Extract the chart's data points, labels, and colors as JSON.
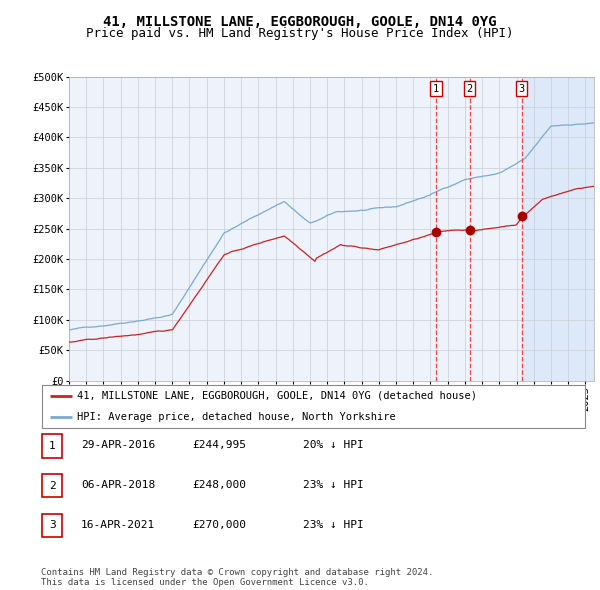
{
  "title": "41, MILLSTONE LANE, EGGBOROUGH, GOOLE, DN14 0YG",
  "subtitle": "Price paid vs. HM Land Registry's House Price Index (HPI)",
  "ylim": [
    0,
    500000
  ],
  "yticks": [
    0,
    50000,
    100000,
    150000,
    200000,
    250000,
    300000,
    350000,
    400000,
    450000,
    500000
  ],
  "ytick_labels": [
    "£0",
    "£50K",
    "£100K",
    "£150K",
    "£200K",
    "£250K",
    "£300K",
    "£350K",
    "£400K",
    "£450K",
    "£500K"
  ],
  "xlim_start": 1995.0,
  "xlim_end": 2025.5,
  "xticks": [
    1995,
    1996,
    1997,
    1998,
    1999,
    2000,
    2001,
    2002,
    2003,
    2004,
    2005,
    2006,
    2007,
    2008,
    2009,
    2010,
    2011,
    2012,
    2013,
    2014,
    2015,
    2016,
    2017,
    2018,
    2019,
    2020,
    2021,
    2022,
    2023,
    2024,
    2025
  ],
  "background_color": "#ffffff",
  "plot_bg_color": "#eef2fb",
  "grid_color": "#c8cdd8",
  "hpi_line_color": "#7aaad0",
  "price_line_color": "#cc2222",
  "marker_color": "#aa0000",
  "vline_color": "#ee4444",
  "shade_color": "#dde8f8",
  "transaction_dates": [
    2016.33,
    2018.27,
    2021.29
  ],
  "transaction_prices": [
    244995,
    248000,
    270000
  ],
  "transaction_labels": [
    "1",
    "2",
    "3"
  ],
  "legend_property": "41, MILLSTONE LANE, EGGBOROUGH, GOOLE, DN14 0YG (detached house)",
  "legend_hpi": "HPI: Average price, detached house, North Yorkshire",
  "table_rows": [
    {
      "num": "1",
      "date": "29-APR-2016",
      "price": "£244,995",
      "note": "20% ↓ HPI"
    },
    {
      "num": "2",
      "date": "06-APR-2018",
      "price": "£248,000",
      "note": "23% ↓ HPI"
    },
    {
      "num": "3",
      "date": "16-APR-2021",
      "price": "£270,000",
      "note": "23% ↓ HPI"
    }
  ],
  "footer": "Contains HM Land Registry data © Crown copyright and database right 2024.\nThis data is licensed under the Open Government Licence v3.0.",
  "title_fontsize": 10,
  "subtitle_fontsize": 9,
  "tick_fontsize": 7.5,
  "legend_fontsize": 7.5,
  "table_fontsize": 8,
  "footer_fontsize": 6.5
}
